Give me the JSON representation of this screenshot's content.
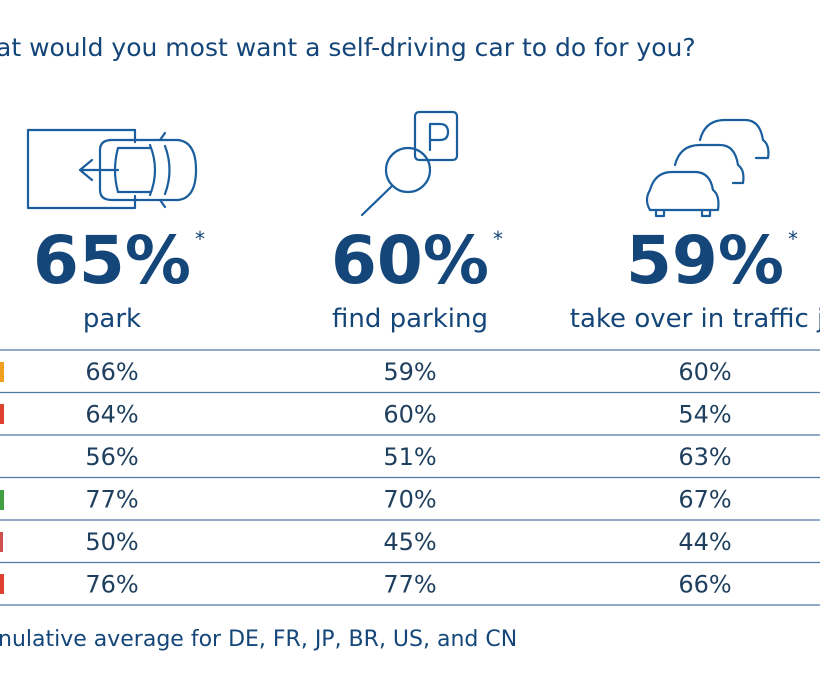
{
  "title": "at would you most want a self-driving car to do for you?",
  "columns": [
    {
      "headline": "65%",
      "asterisk": "*",
      "label": "park"
    },
    {
      "headline": "60%",
      "asterisk": "*",
      "label": "find parking"
    },
    {
      "headline": "59%",
      "asterisk": "*",
      "label": "take over in traffic ja"
    }
  ],
  "table": {
    "rows": [
      [
        "66%",
        "59%",
        "60%"
      ],
      [
        "64%",
        "60%",
        "54%"
      ],
      [
        "56%",
        "51%",
        "63%"
      ],
      [
        "77%",
        "70%",
        "67%"
      ],
      [
        "50%",
        "45%",
        "44%"
      ],
      [
        "76%",
        "77%",
        "66%"
      ]
    ]
  },
  "footnote": "nulative average for DE, FR, JP, BR, US, and CN"
}
